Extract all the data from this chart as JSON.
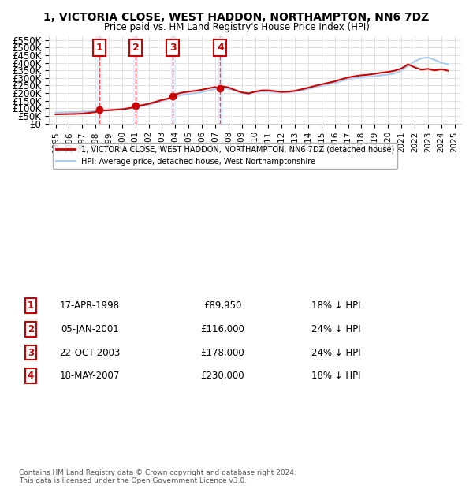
{
  "title": "1, VICTORIA CLOSE, WEST HADDON, NORTHAMPTON, NN6 7DZ",
  "subtitle": "Price paid vs. HM Land Registry's House Price Index (HPI)",
  "ylabel": "",
  "ylim": [
    0,
    575000
  ],
  "yticks": [
    0,
    50000,
    100000,
    150000,
    200000,
    250000,
    300000,
    350000,
    400000,
    450000,
    500000,
    550000
  ],
  "ytick_labels": [
    "£0",
    "£50K",
    "£100K",
    "£150K",
    "£200K",
    "£250K",
    "£300K",
    "£350K",
    "£400K",
    "£450K",
    "£500K",
    "£550K"
  ],
  "legend_line1": "1, VICTORIA CLOSE, WEST HADDON, NORTHAMPTON, NN6 7DZ (detached house)",
  "legend_line2": "HPI: Average price, detached house, West Northamptonshire",
  "footer1": "Contains HM Land Registry data © Crown copyright and database right 2024.",
  "footer2": "This data is licensed under the Open Government Licence v3.0.",
  "transactions": [
    {
      "num": 1,
      "date": "17-APR-1998",
      "price": 89950,
      "pct": "18%",
      "year": 1998.29
    },
    {
      "num": 2,
      "date": "05-JAN-2001",
      "price": 116000,
      "pct": "24%",
      "year": 2001.01
    },
    {
      "num": 3,
      "date": "22-OCT-2003",
      "price": 178000,
      "pct": "24%",
      "year": 2003.81
    },
    {
      "num": 4,
      "date": "18-MAY-2007",
      "price": 230000,
      "pct": "18%",
      "year": 2007.38
    }
  ],
  "hpi_years": [
    1995,
    1995.5,
    1996,
    1996.5,
    1997,
    1997.5,
    1998,
    1998.5,
    1999,
    1999.5,
    2000,
    2000.5,
    2001,
    2001.5,
    2002,
    2002.5,
    2003,
    2003.5,
    2004,
    2004.5,
    2005,
    2005.5,
    2006,
    2006.5,
    2007,
    2007.5,
    2008,
    2008.5,
    2009,
    2009.5,
    2010,
    2010.5,
    2011,
    2011.5,
    2012,
    2012.5,
    2013,
    2013.5,
    2014,
    2014.5,
    2015,
    2015.5,
    2016,
    2016.5,
    2017,
    2017.5,
    2018,
    2018.5,
    2019,
    2019.5,
    2020,
    2020.5,
    2021,
    2021.5,
    2022,
    2022.5,
    2023,
    2023.5,
    2024,
    2024.5
  ],
  "hpi_values": [
    72000,
    73000,
    74000,
    75000,
    77000,
    79000,
    82000,
    85000,
    88000,
    92000,
    96000,
    101000,
    107000,
    115000,
    124000,
    135000,
    148000,
    160000,
    175000,
    188000,
    196000,
    200000,
    207000,
    217000,
    228000,
    235000,
    228000,
    215000,
    200000,
    195000,
    205000,
    210000,
    210000,
    207000,
    203000,
    205000,
    210000,
    218000,
    228000,
    238000,
    248000,
    258000,
    268000,
    280000,
    292000,
    300000,
    305000,
    308000,
    312000,
    318000,
    322000,
    330000,
    348000,
    380000,
    410000,
    430000,
    435000,
    420000,
    400000,
    390000
  ],
  "property_years": [
    1995,
    1995.5,
    1996,
    1996.5,
    1997,
    1997.5,
    1998,
    1998.29,
    1998.5,
    1999,
    1999.5,
    2000,
    2000.5,
    2001,
    2001.01,
    2001.5,
    2002,
    2002.5,
    2003,
    2003.5,
    2003.81,
    2004,
    2004.5,
    2005,
    2005.5,
    2006,
    2006.5,
    2007,
    2007.38,
    2007.5,
    2008,
    2008.5,
    2009,
    2009.5,
    2010,
    2010.5,
    2011,
    2011.5,
    2012,
    2012.5,
    2013,
    2013.5,
    2014,
    2014.5,
    2015,
    2015.5,
    2016,
    2016.5,
    2017,
    2017.5,
    2018,
    2018.5,
    2019,
    2019.5,
    2020,
    2020.5,
    2021,
    2021.5,
    2022,
    2022.5,
    2023,
    2023.5,
    2024,
    2024.5
  ],
  "property_values": [
    60000,
    61000,
    62000,
    63000,
    65000,
    70000,
    75000,
    89950,
    85000,
    87000,
    90000,
    93000,
    100000,
    108000,
    116000,
    120000,
    130000,
    142000,
    155000,
    165000,
    178000,
    192000,
    203000,
    210000,
    215000,
    222000,
    232000,
    240000,
    230000,
    245000,
    238000,
    220000,
    205000,
    198000,
    210000,
    218000,
    218000,
    213000,
    208000,
    210000,
    215000,
    225000,
    236000,
    248000,
    258000,
    268000,
    278000,
    292000,
    304000,
    312000,
    318000,
    322000,
    328000,
    335000,
    340000,
    348000,
    362000,
    390000,
    370000,
    355000,
    360000,
    350000,
    358000,
    348000
  ],
  "bg_color": "#ffffff",
  "hpi_color": "#aaccee",
  "property_color": "#cc0000",
  "vline_color": "#ff4444",
  "box_color": "#cc0000",
  "shade_color": "#ddeeff",
  "xtick_start": 1995,
  "xtick_end": 2025
}
